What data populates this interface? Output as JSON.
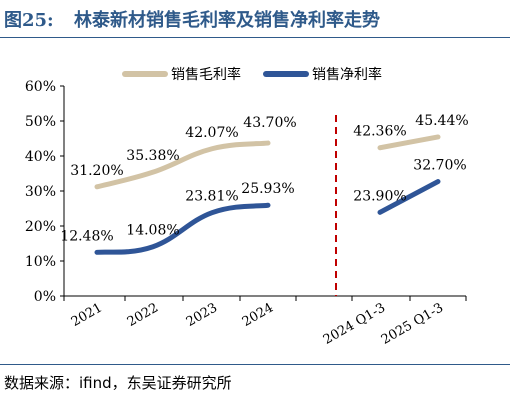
{
  "figure": {
    "label": "图25:",
    "title": "林泰新材销售毛利率及销售净利率走势",
    "source": "数据来源：ifind，东吴证券研究所"
  },
  "colors": {
    "gross": "#d2c3a5",
    "net": "#2f5597",
    "divider": "#c00000",
    "title": "#2f5a8a"
  },
  "chart_data": {
    "type": "line",
    "title": "",
    "xlabel": "",
    "ylabel": "",
    "ylim": [
      0,
      60
    ],
    "y_ticks": [
      "0%",
      "10%",
      "20%",
      "30%",
      "40%",
      "50%",
      "60%"
    ],
    "categories": [
      "2021",
      "2022",
      "2023",
      "2024",
      "2024 Q1-3",
      "2025 Q1-3"
    ],
    "legend_position": "top",
    "series": [
      {
        "name": "销售毛利率",
        "values": [
          31.2,
          35.38,
          42.07,
          43.7,
          42.36,
          45.44
        ],
        "labels": [
          "31.20%",
          "35.38%",
          "42.07%",
          "43.70%",
          "42.36%",
          "45.44%"
        ]
      },
      {
        "name": "销售净利率",
        "values": [
          12.48,
          14.08,
          23.81,
          25.93,
          23.9,
          32.7
        ],
        "labels": [
          "12.48%",
          "14.08%",
          "23.81%",
          "25.93%",
          "23.90%",
          "32.70%"
        ]
      }
    ],
    "segments": [
      [
        0,
        1,
        2,
        3
      ],
      [
        4,
        5
      ]
    ]
  }
}
